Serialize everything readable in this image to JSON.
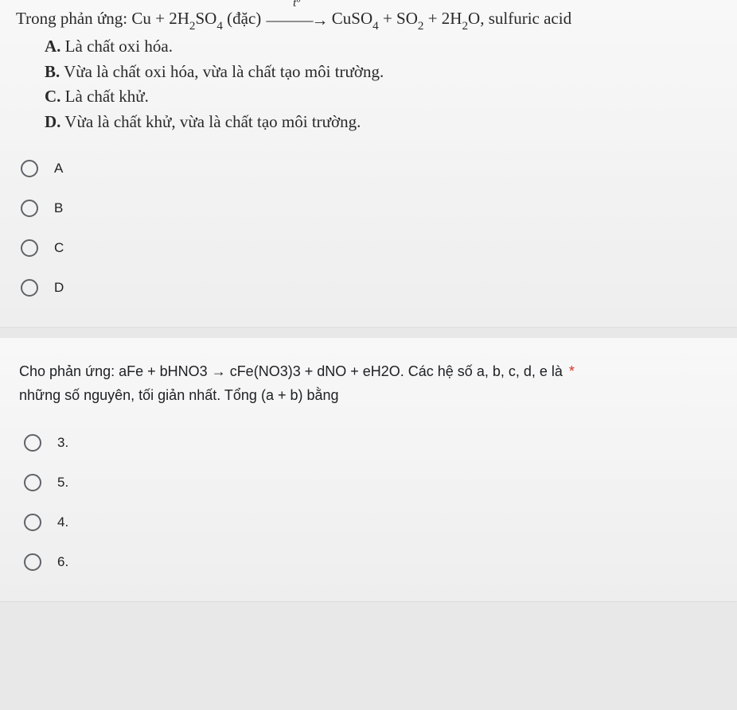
{
  "q1": {
    "stem_prefix": "Trong phản ứng: Cu + 2H",
    "stem_h2so4_sub1": "2",
    "stem_so4": "SO",
    "stem_so4_sub": "4",
    "stem_dac": " (đặc) ",
    "arrow_top": "tº",
    "arrow_glyph": "———→",
    "stem_cuso4": " CuSO",
    "stem_cuso4_sub": "4",
    "stem_plus": " + SO",
    "stem_so2_sub": "2",
    "stem_plus2": " + 2H",
    "stem_h2o_sub": "2",
    "stem_h2o_o": "O, sulfuric acid",
    "options": {
      "A": {
        "label": "A.",
        "text": " Là chất oxi hóa."
      },
      "B": {
        "label": "B.",
        "text": " Vừa là chất oxi hóa, vừa là chất tạo môi trường."
      },
      "C": {
        "label": "C.",
        "text": " Là chất khử."
      },
      "D": {
        "label": "D.",
        "text": " Vừa là chất khử, vừa là chất tạo môi trường."
      }
    },
    "radios": [
      {
        "label": "A"
      },
      {
        "label": "B"
      },
      {
        "label": "C"
      },
      {
        "label": "D"
      }
    ]
  },
  "q2": {
    "text_line1": "Cho phản ứng: aFe + bHNO3 → cFe(NO3)3 + dNO + eH2O. Các hệ số a, b, c, d, e là ",
    "asterisk": "*",
    "text_line2": "những số nguyên, tối giản nhất. Tổng (a + b) bằng",
    "radios": [
      {
        "label": "3."
      },
      {
        "label": "5."
      },
      {
        "label": "4."
      },
      {
        "label": "6."
      }
    ]
  },
  "colors": {
    "card_bg": "#f5f5f5",
    "body_bg": "#e8e8e8",
    "text": "#202124",
    "radio_border": "#5f6368",
    "required": "#d93025"
  }
}
